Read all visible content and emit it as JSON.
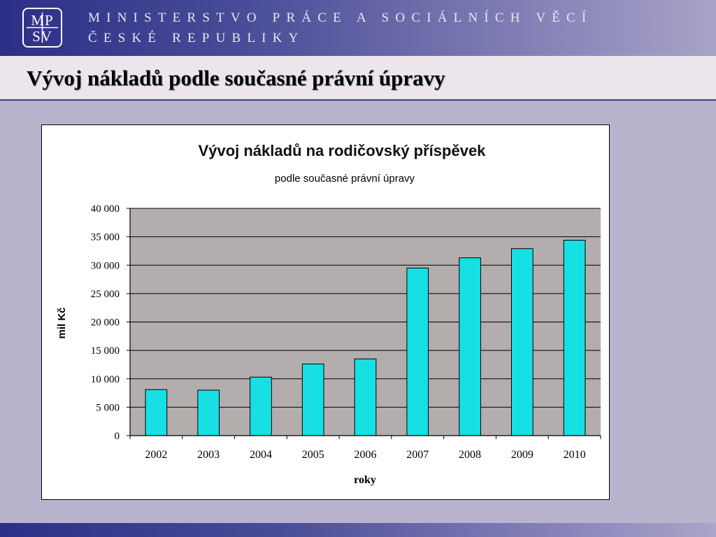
{
  "header": {
    "logo": {
      "top": "MP",
      "bottom": "SV"
    },
    "ministry_line1": "MINISTERSTVO PRÁCE A SOCIÁLNÍCH VĚCÍ",
    "ministry_line2": "ČESKÉ REPUBLIKY"
  },
  "slide": {
    "title": "Vývoj nákladů podle současné právní úpravy"
  },
  "chart_data": {
    "type": "bar",
    "title": "Vývoj nákladů na rodičovský příspěvek",
    "subtitle": "podle současné právní úpravy",
    "xlabel": "roky",
    "ylabel": "mil Kč",
    "categories": [
      "2002",
      "2003",
      "2004",
      "2005",
      "2006",
      "2007",
      "2008",
      "2009",
      "2010"
    ],
    "values": [
      8100,
      8000,
      10300,
      12600,
      13500,
      29500,
      31300,
      32900,
      34400
    ],
    "ylim": [
      0,
      40000
    ],
    "yticks": [
      0,
      5000,
      10000,
      15000,
      20000,
      25000,
      30000,
      35000,
      40000
    ],
    "ytick_labels": [
      "0",
      "5 000",
      "10 000",
      "15 000",
      "20 000",
      "25 000",
      "30 000",
      "35 000",
      "40 000"
    ],
    "grid": true,
    "legend": "none",
    "bar_color": "#16e0e4",
    "plot_background": "#b4adad"
  }
}
